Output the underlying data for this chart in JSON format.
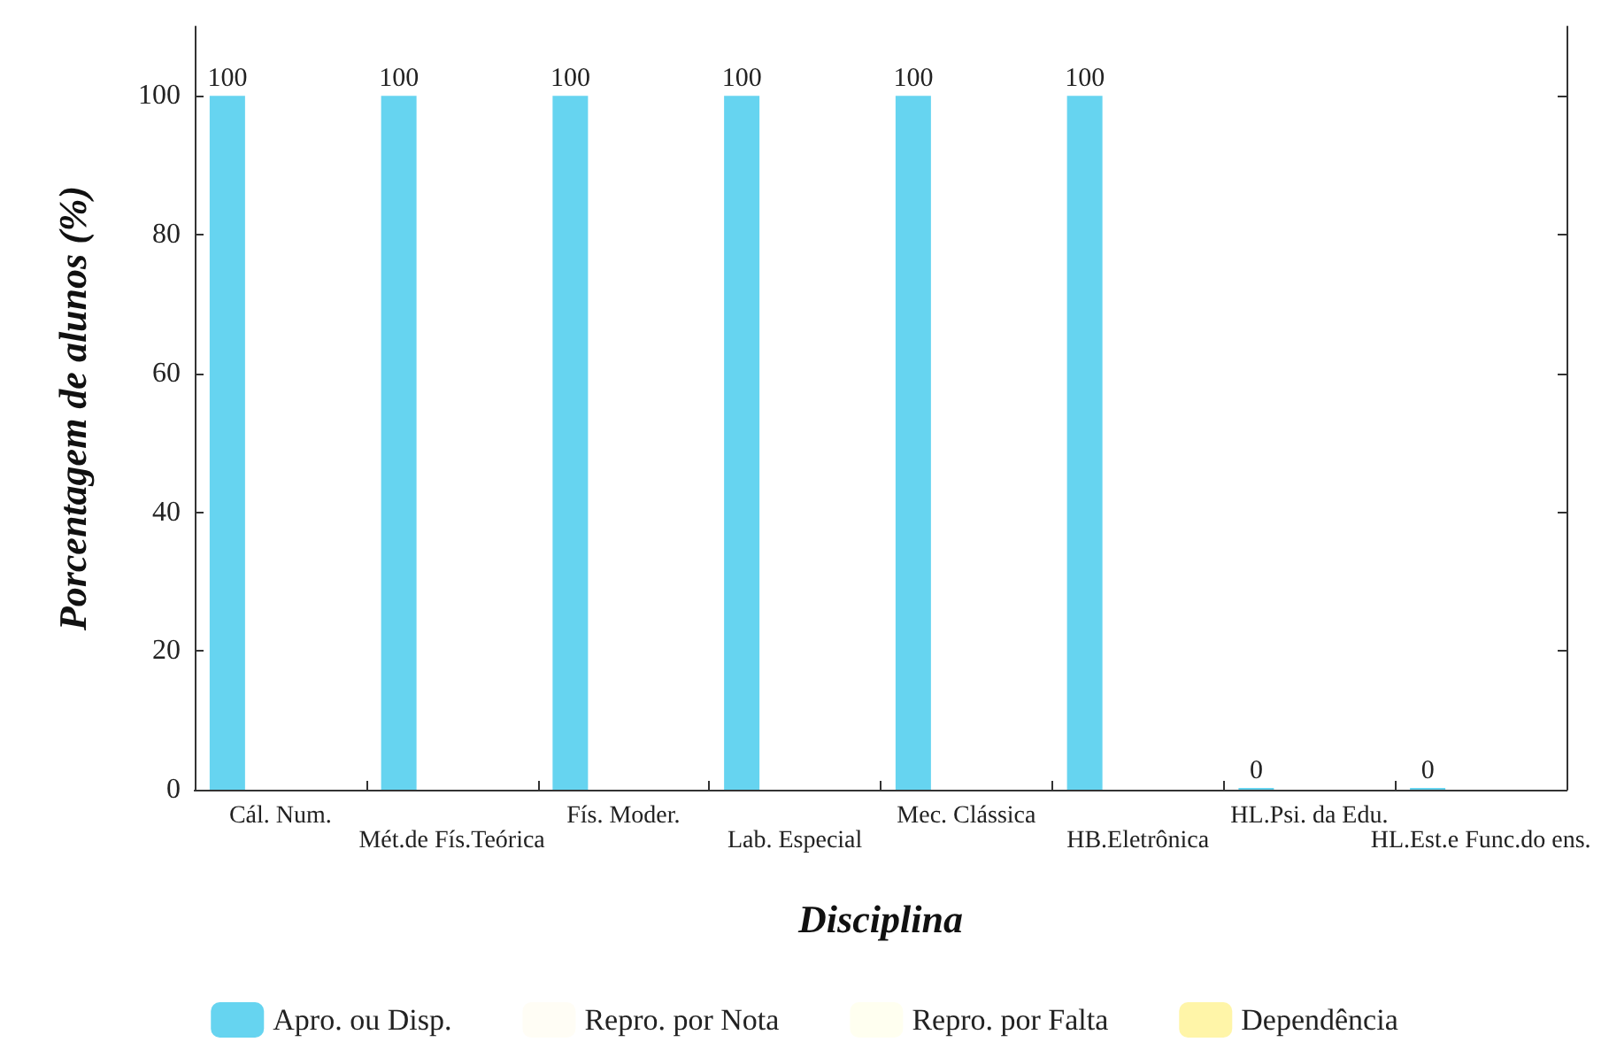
{
  "chart_data": {
    "type": "bar",
    "xlabel": "Disciplina",
    "ylabel": "Porcentagem de alunos (%)",
    "categories": [
      "Cál. Num.",
      "Mét.de Fís.Teórica",
      "Fís. Moder.",
      "Lab. Especial",
      "Mec. Clássica",
      "HB.Eletrônica",
      "HL.Psi. da Edu.",
      "HL.Est.e Func.do ens."
    ],
    "series": [
      {
        "name": "Apro. ou Disp.",
        "color": "#66d4f0",
        "values": [
          100,
          100,
          100,
          100,
          100,
          100,
          0,
          0
        ],
        "value_labels": [
          "100",
          "100",
          "100",
          "100",
          "100",
          "100",
          "0",
          "0"
        ]
      },
      {
        "name": "Repro. por Nota",
        "color": "#fffdf5",
        "values": [
          0,
          0,
          0,
          0,
          0,
          0,
          0,
          0
        ]
      },
      {
        "name": "Repro. por Falta",
        "color": "#fffff0",
        "values": [
          0,
          0,
          0,
          0,
          0,
          0,
          0,
          0
        ]
      },
      {
        "name": "Dependência",
        "color": "#fff5a8",
        "values": [
          0,
          0,
          0,
          0,
          0,
          0,
          0,
          0
        ]
      }
    ],
    "ylim": [
      0,
      110
    ],
    "yticks": [
      0,
      20,
      40,
      60,
      80,
      100
    ],
    "grid": false,
    "legend": "bottom"
  }
}
